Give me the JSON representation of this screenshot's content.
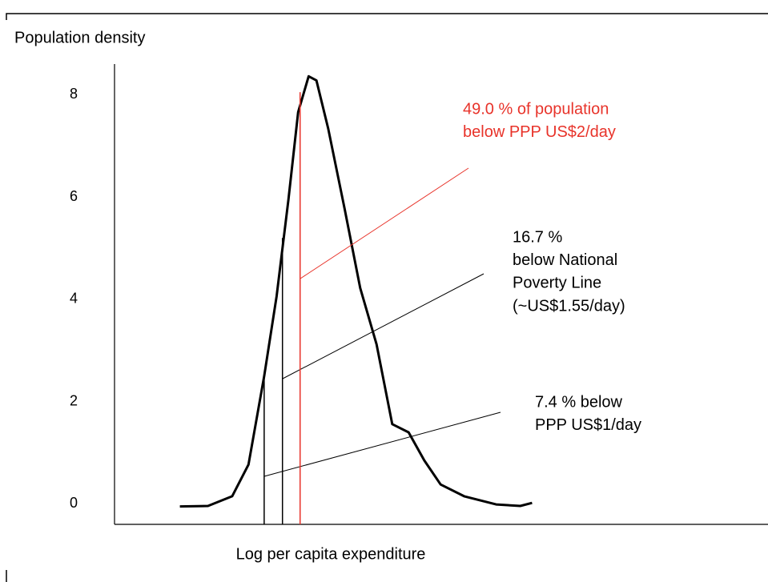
{
  "chart_data": {
    "type": "line",
    "title": "Population density",
    "x_label": "Log per capita expenditure",
    "xlim": [
      0,
      100
    ],
    "ylim": [
      -0.4,
      8.6
    ],
    "yticks": [
      0,
      2,
      4,
      6,
      8
    ],
    "grid": false,
    "x": [
      10,
      14.3,
      18,
      20.5,
      22.9,
      24.8,
      26.6,
      28.1,
      29.7,
      30.9,
      32.7,
      35.2,
      37.6,
      40.1,
      42.5,
      45,
      47.4,
      49.9,
      53.5,
      58.4,
      62.1,
      63.9
    ],
    "series": [
      {
        "color": "#000000",
        "values": [
          -0.05,
          -0.04,
          0.15,
          0.77,
          2.5,
          4.06,
          5.94,
          7.66,
          8.36,
          8.28,
          7.34,
          5.78,
          4.22,
          3.12,
          1.56,
          1.4,
          0.85,
          0.38,
          0.15,
          -0.01,
          -0.04,
          0.02
        ]
      }
    ],
    "markers": [
      {
        "x": 22.9,
        "y": 2.5,
        "color": "#000000",
        "text_color": "#000000",
        "text": [
          "7.4 % below",
          "PPP US$1/day"
        ]
      },
      {
        "x": 25.7,
        "y": 5.2,
        "color": "#000000",
        "text_color": "#000000",
        "text": [
          "16.7 %",
          "below National",
          "Poverty Line",
          "(~US$1.55/day)"
        ]
      },
      {
        "x": 28.4,
        "y": 8.05,
        "color": "#e8332a",
        "text_color": "#e8332a",
        "text": [
          "49.0 % of population",
          "below PPP US$2/day"
        ]
      }
    ]
  }
}
